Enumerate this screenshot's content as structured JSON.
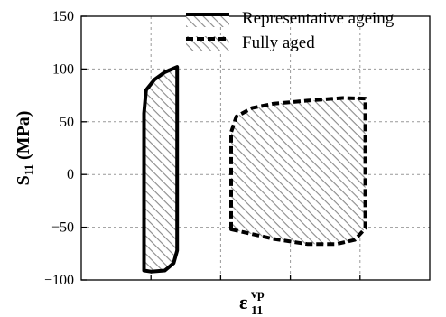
{
  "chart_data": {
    "type": "area",
    "ylabel": {
      "main": "S",
      "sub": "11",
      "unit": " (MPa)"
    },
    "xlabel": {
      "main": "ε",
      "sup": "vp",
      "sub": "11"
    },
    "ylim": [
      -100,
      150
    ],
    "yticks": [
      "150",
      "100",
      "50",
      "0",
      "−50",
      "−100"
    ],
    "ytick_values": [
      150,
      100,
      50,
      0,
      -50,
      -100
    ],
    "xlim": [
      0,
      1
    ],
    "xgrid": [
      0.2,
      0.4,
      0.6,
      0.8
    ],
    "grid": true,
    "legend_position": "top",
    "series": [
      {
        "name": "Representative ageing",
        "line_style": "solid",
        "fill": "hatched",
        "color": "#000000",
        "points": [
          [
            0.18,
            -91
          ],
          [
            0.18,
            58
          ],
          [
            0.186,
            80
          ],
          [
            0.21,
            90
          ],
          [
            0.24,
            97
          ],
          [
            0.275,
            102
          ],
          [
            0.275,
            -72
          ],
          [
            0.265,
            -84
          ],
          [
            0.24,
            -91
          ],
          [
            0.2,
            -92
          ],
          [
            0.18,
            -91
          ]
        ]
      },
      {
        "name": "Fully aged",
        "line_style": "dashed",
        "fill": "hatched",
        "color": "#000000",
        "points": [
          [
            0.43,
            -52
          ],
          [
            0.43,
            40
          ],
          [
            0.445,
            55
          ],
          [
            0.49,
            63
          ],
          [
            0.55,
            67
          ],
          [
            0.65,
            70
          ],
          [
            0.75,
            72.5
          ],
          [
            0.815,
            72
          ],
          [
            0.815,
            -51
          ],
          [
            0.785,
            -62
          ],
          [
            0.73,
            -66
          ],
          [
            0.65,
            -66
          ],
          [
            0.55,
            -61
          ],
          [
            0.43,
            -52
          ]
        ]
      }
    ]
  }
}
